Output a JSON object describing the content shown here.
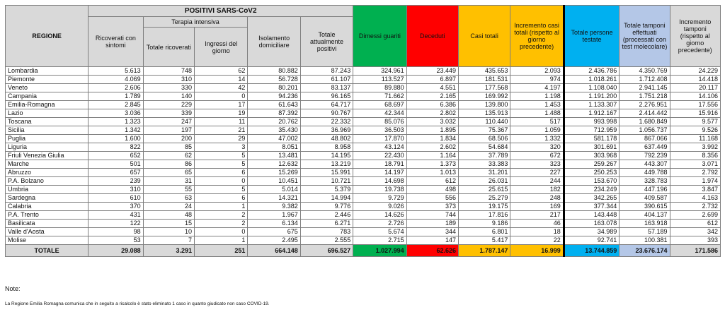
{
  "header": {
    "group_positivi": "POSITIVI SARS-CoV2",
    "regione": "REGIONE",
    "ricoverati": "Ricoverati con sintomi",
    "terapia_intensiva": "Terapia intensiva",
    "totale_ricoverati": "Totale ricoverati",
    "ingressi": "Ingressi del giorno",
    "isolamento": "Isolamento domiciliare",
    "totale_positivi": "Totale attualmente positivi",
    "dimessi": "Dimessi guariti",
    "deceduti": "Deceduti",
    "casi_totali": "Casi totali",
    "incremento_casi": "Incremento casi totali (rispetto al giorno precedente)",
    "persone_testate": "Totale persone testate",
    "tamponi": "Totale tamponi effettuati (processati con test molecolare)",
    "incremento_tamponi": "Incremento tamponi (rispetto al giorno precedente)"
  },
  "colors": {
    "dimessi": "#00b050",
    "deceduti": "#ff0000",
    "casi": "#ffc000",
    "persone": "#00b0f0",
    "tamponi": "#b4c7e7",
    "header": "#d9d9d9"
  },
  "rows": [
    [
      "Lombardia",
      "5.613",
      "748",
      "62",
      "80.882",
      "87.243",
      "324.961",
      "23.449",
      "435.653",
      "2.093",
      "2.436.786",
      "4.350.769",
      "24.229"
    ],
    [
      "Piemonte",
      "4.069",
      "310",
      "14",
      "56.728",
      "61.107",
      "113.527",
      "6.897",
      "181.531",
      "974",
      "1.018.261",
      "1.712.408",
      "14.418"
    ],
    [
      "Veneto",
      "2.606",
      "330",
      "42",
      "80.201",
      "83.137",
      "89.880",
      "4.551",
      "177.568",
      "4.197",
      "1.108.040",
      "2.941.145",
      "20.117"
    ],
    [
      "Campania",
      "1.789",
      "140",
      "0",
      "94.236",
      "96.165",
      "71.662",
      "2.165",
      "169.992",
      "1.198",
      "1.191.200",
      "1.751.218",
      "14.106"
    ],
    [
      "Emilia-Romagna",
      "2.845",
      "229",
      "17",
      "61.643",
      "64.717",
      "68.697",
      "6.386",
      "139.800",
      "1.453",
      "1.133.307",
      "2.276.951",
      "17.556"
    ],
    [
      "Lazio",
      "3.036",
      "339",
      "19",
      "87.392",
      "90.767",
      "42.344",
      "2.802",
      "135.913",
      "1.488",
      "1.912.167",
      "2.414.442",
      "15.916"
    ],
    [
      "Toscana",
      "1.323",
      "247",
      "11",
      "20.762",
      "22.332",
      "85.076",
      "3.032",
      "110.440",
      "517",
      "993.998",
      "1.680.849",
      "9.577"
    ],
    [
      "Sicilia",
      "1.342",
      "197",
      "21",
      "35.430",
      "36.969",
      "36.503",
      "1.895",
      "75.367",
      "1.059",
      "712.959",
      "1.056.737",
      "9.526"
    ],
    [
      "Puglia",
      "1.600",
      "200",
      "29",
      "47.002",
      "48.802",
      "17.870",
      "1.834",
      "68.506",
      "1.332",
      "581.178",
      "867.066",
      "11.168"
    ],
    [
      "Liguria",
      "822",
      "85",
      "3",
      "8.051",
      "8.958",
      "43.124",
      "2.602",
      "54.684",
      "320",
      "301.691",
      "637.449",
      "3.992"
    ],
    [
      "Friuli Venezia Giulia",
      "652",
      "62",
      "5",
      "13.481",
      "14.195",
      "22.430",
      "1.164",
      "37.789",
      "672",
      "303.968",
      "792.239",
      "8.356"
    ],
    [
      "Marche",
      "501",
      "86",
      "5",
      "12.632",
      "13.219",
      "18.791",
      "1.373",
      "33.383",
      "323",
      "259.267",
      "443.307",
      "3.071"
    ],
    [
      "Abruzzo",
      "657",
      "65",
      "6",
      "15.269",
      "15.991",
      "14.197",
      "1.013",
      "31.201",
      "227",
      "250.253",
      "449.788",
      "2.792"
    ],
    [
      "P.A. Bolzano",
      "239",
      "31",
      "0",
      "10.451",
      "10.721",
      "14.698",
      "612",
      "26.031",
      "244",
      "153.670",
      "328.783",
      "1.974"
    ],
    [
      "Umbria",
      "310",
      "55",
      "5",
      "5.014",
      "5.379",
      "19.738",
      "498",
      "25.615",
      "182",
      "234.249",
      "447.196",
      "3.847"
    ],
    [
      "Sardegna",
      "610",
      "63",
      "6",
      "14.321",
      "14.994",
      "9.729",
      "556",
      "25.279",
      "248",
      "342.265",
      "409.587",
      "4.163"
    ],
    [
      "Calabria",
      "370",
      "24",
      "1",
      "9.382",
      "9.776",
      "9.026",
      "373",
      "19.175",
      "169",
      "377.344",
      "390.615",
      "2.732"
    ],
    [
      "P.A. Trento",
      "431",
      "48",
      "2",
      "1.967",
      "2.446",
      "14.626",
      "744",
      "17.816",
      "217",
      "143.448",
      "404.137",
      "2.699"
    ],
    [
      "Basilicata",
      "122",
      "15",
      "2",
      "6.134",
      "6.271",
      "2.726",
      "189",
      "9.186",
      "46",
      "163.078",
      "163.918",
      "612"
    ],
    [
      "Valle d'Aosta",
      "98",
      "10",
      "0",
      "675",
      "783",
      "5.674",
      "344",
      "6.801",
      "18",
      "34.989",
      "57.189",
      "342"
    ],
    [
      "Molise",
      "53",
      "7",
      "1",
      "2.495",
      "2.555",
      "2.715",
      "147",
      "5.417",
      "22",
      "92.741",
      "100.381",
      "393"
    ]
  ],
  "totale": [
    "TOTALE",
    "29.088",
    "3.291",
    "251",
    "664.148",
    "696.527",
    "1.027.994",
    "62.626",
    "1.787.147",
    "16.999",
    "13.744.859",
    "23.676.174",
    "171.586"
  ],
  "note": {
    "title": "Note:",
    "text": "La Regione Emilia Romagna comunica che in seguito a ricalcolo è stato eliminato 1 caso in quanto giudicato non caso COVID-19."
  }
}
